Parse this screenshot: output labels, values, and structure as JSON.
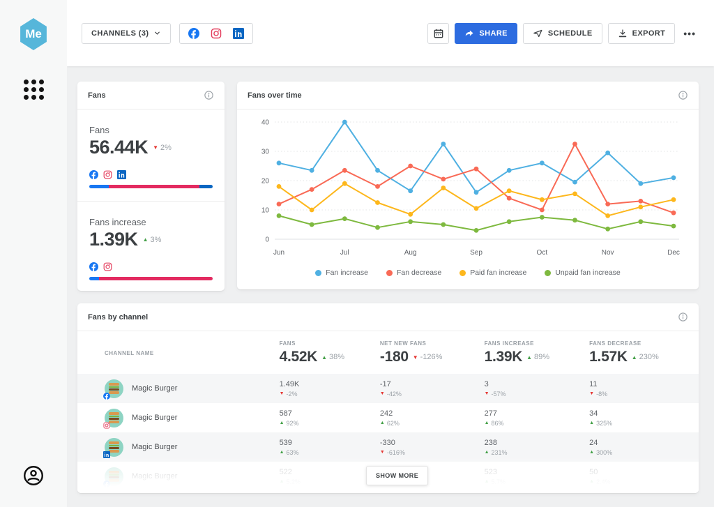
{
  "brand": {
    "logo_text": "Me",
    "logo_color": "#56b6da"
  },
  "topbar": {
    "channels_button_label": "CHANNELS (3)",
    "channel_icons": [
      "facebook",
      "instagram",
      "linkedin"
    ],
    "share_label": "SHARE",
    "schedule_label": "SCHEDULE",
    "export_label": "EXPORT",
    "more_label": "•••"
  },
  "fans_card": {
    "title": "Fans",
    "metrics": [
      {
        "label": "Fans",
        "value": "56.44K",
        "delta": "2%",
        "direction": "down",
        "icons": [
          "facebook",
          "instagram",
          "linkedin"
        ],
        "bar": [
          {
            "color": "#1877f2",
            "pct": 16
          },
          {
            "color": "#e32a60",
            "pct": 73
          },
          {
            "color": "#0a66c2",
            "pct": 11
          }
        ]
      },
      {
        "label": "Fans increase",
        "value": "1.39K",
        "delta": "3%",
        "direction": "up",
        "icons": [
          "facebook",
          "instagram"
        ],
        "bar": [
          {
            "color": "#1877f2",
            "pct": 8
          },
          {
            "color": "#e32a60",
            "pct": 92
          }
        ]
      }
    ]
  },
  "chart_card": {
    "title": "Fans over time"
  },
  "chart_data": {
    "type": "line",
    "title": "Fans over time",
    "x_tick_labels": [
      "Jun",
      "Jul",
      "Aug",
      "Sep",
      "Oct",
      "Nov",
      "Dec"
    ],
    "points_per_series": 13,
    "ylim": [
      0,
      40
    ],
    "yticks": [
      0,
      10,
      20,
      30,
      40
    ],
    "grid": "dotted-horizontal",
    "legend_position": "bottom",
    "series": [
      {
        "name": "Fan increase",
        "color": "#4fb0e2",
        "values": [
          26,
          23.5,
          40,
          23.5,
          16.5,
          32.5,
          16,
          23.5,
          26,
          19.5,
          29.5,
          19,
          21
        ]
      },
      {
        "name": "Fan decrease",
        "color": "#f96a56",
        "values": [
          12,
          17,
          23.5,
          18,
          25,
          20.5,
          24,
          14,
          10,
          32.5,
          12,
          13,
          9
        ]
      },
      {
        "name": "Paid fan increase",
        "color": "#fdb71c",
        "values": [
          18,
          10,
          19,
          12.5,
          8.5,
          17.5,
          10.5,
          16.5,
          13.5,
          15.5,
          8,
          11,
          13.5
        ]
      },
      {
        "name": "Unpaid fan increase",
        "color": "#7eb93f",
        "values": [
          8,
          5,
          7,
          4,
          6,
          5,
          3,
          6,
          7.5,
          6.5,
          3.5,
          6,
          4.5
        ]
      }
    ]
  },
  "table_card": {
    "title": "Fans by channel",
    "name_column_label": "CHANNEL NAME",
    "columns": [
      {
        "label": "FANS",
        "total": "4.52K",
        "delta": "38%",
        "direction": "up"
      },
      {
        "label": "NET NEW FANS",
        "total": "-180",
        "delta": "-126%",
        "direction": "down"
      },
      {
        "label": "FANS INCREASE",
        "total": "1.39K",
        "delta": "89%",
        "direction": "up"
      },
      {
        "label": "FANS DECREASE",
        "total": "1.57K",
        "delta": "230%",
        "direction": "up"
      }
    ],
    "rows": [
      {
        "name": "Magic Burger",
        "network": "facebook",
        "faded": false,
        "cells": [
          {
            "value": "1.49K",
            "delta": "-2%",
            "direction": "down"
          },
          {
            "value": "-17",
            "delta": "-42%",
            "direction": "down"
          },
          {
            "value": "3",
            "delta": "-57%",
            "direction": "down"
          },
          {
            "value": "11",
            "delta": "-8%",
            "direction": "down"
          }
        ]
      },
      {
        "name": "Magic Burger",
        "network": "instagram",
        "faded": false,
        "cells": [
          {
            "value": "587",
            "delta": "92%",
            "direction": "up"
          },
          {
            "value": "242",
            "delta": "62%",
            "direction": "up"
          },
          {
            "value": "277",
            "delta": "86%",
            "direction": "up"
          },
          {
            "value": "34",
            "delta": "325%",
            "direction": "up"
          }
        ]
      },
      {
        "name": "Magic Burger",
        "network": "linkedin",
        "faded": false,
        "cells": [
          {
            "value": "539",
            "delta": "63%",
            "direction": "up"
          },
          {
            "value": "-330",
            "delta": "-616%",
            "direction": "down"
          },
          {
            "value": "238",
            "delta": "231%",
            "direction": "up"
          },
          {
            "value": "24",
            "delta": "300%",
            "direction": "up"
          }
        ]
      },
      {
        "name": "Magic Burger",
        "network": "facebook",
        "faded": true,
        "cells": [
          {
            "value": "522",
            "delta": "5.2%",
            "direction": "up"
          },
          {
            "value": "",
            "delta": "",
            "direction": "up"
          },
          {
            "value": "523",
            "delta": "5.7%",
            "direction": "up"
          },
          {
            "value": "50",
            "delta": "2.4%",
            "direction": "up"
          }
        ]
      }
    ],
    "show_more_label": "SHOW MORE"
  }
}
